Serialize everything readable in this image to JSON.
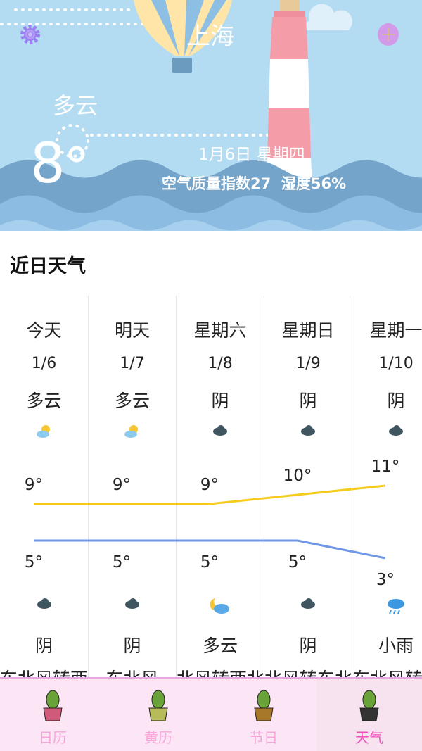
{
  "header": {
    "city": "上海",
    "condition": "多云",
    "temperature": "8",
    "date": "1月6日 星期四",
    "air_humidity": "空气质量指数27  湿度56%",
    "settings_icon": "gear-icon",
    "add_icon": "plus-icon"
  },
  "section_title": "近日天气",
  "forecast": [
    {
      "day": "今天",
      "date": "1/6",
      "day_weather": "多云",
      "day_icon": "partly-cloudy-icon",
      "high": "9°",
      "low": "5°",
      "night_icon": "cloud-icon",
      "night_weather": "阴",
      "wind": "东北风转西"
    },
    {
      "day": "明天",
      "date": "1/7",
      "day_weather": "多云",
      "day_icon": "partly-cloudy-icon",
      "high": "9°",
      "low": "5°",
      "night_icon": "cloud-icon",
      "night_weather": "阴",
      "wind": "东北风"
    },
    {
      "day": "星期六",
      "date": "1/8",
      "day_weather": "阴",
      "day_icon": "cloud-icon",
      "high": "9°",
      "low": "5°",
      "night_icon": "moon-cloud-icon",
      "night_weather": "多云",
      "wind": "北风转西北"
    },
    {
      "day": "星期日",
      "date": "1/9",
      "day_weather": "阴",
      "day_icon": "cloud-icon",
      "high": "10°",
      "low": "5°",
      "night_icon": "cloud-icon",
      "night_weather": "阴",
      "wind": "北风转东北"
    },
    {
      "day": "星期一",
      "date": "1/10",
      "day_weather": "阴",
      "day_icon": "cloud-icon",
      "high": "11°",
      "low": "3°",
      "night_icon": "rain-icon",
      "night_weather": "小雨",
      "wind": "东北风转西"
    }
  ],
  "chart_data": {
    "type": "line",
    "categories": [
      "1/6",
      "1/7",
      "1/8",
      "1/9",
      "1/10"
    ],
    "series": [
      {
        "values": [
          9,
          9,
          9,
          10,
          11
        ],
        "color": "#f5cc1e"
      },
      {
        "values": [
          5,
          5,
          5,
          5,
          3
        ],
        "color": "#6f97e6"
      }
    ]
  },
  "nav": [
    {
      "label": "日历"
    },
    {
      "label": "黄历"
    },
    {
      "label": "节日"
    },
    {
      "label": "天气",
      "active": true
    }
  ],
  "colors": {
    "nav_active": "#f54fbd",
    "nav_inactive": "#f7a6dc",
    "sky": "#b3dcf2"
  }
}
